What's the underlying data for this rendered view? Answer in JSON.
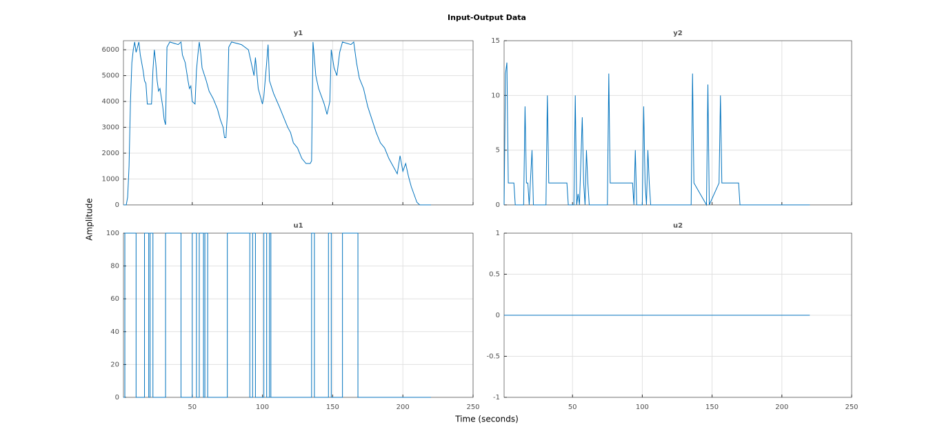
{
  "title": "Input-Output Data",
  "xlabel": "Time (seconds)",
  "ylabel": "Amplitude",
  "chart_data": [
    {
      "type": "line",
      "title": "y1",
      "color": "#0072bd",
      "grid": true,
      "xlim": [
        1,
        250
      ],
      "xticks": [
        50,
        100,
        150,
        200,
        250
      ],
      "ylim": [
        0,
        6350
      ],
      "yticks": [
        0,
        1000,
        2000,
        3000,
        4000,
        5000,
        6000
      ],
      "x": [
        1,
        3,
        4,
        5,
        6,
        7,
        8,
        9,
        10,
        12,
        13,
        15,
        16,
        17,
        18,
        21,
        22,
        23,
        24,
        25,
        26,
        27,
        29,
        30,
        31,
        32,
        34,
        40,
        42,
        43,
        45,
        47,
        48,
        49,
        50,
        52,
        53,
        54,
        55,
        56,
        57,
        60,
        62,
        65,
        68,
        70,
        72,
        73,
        74,
        75,
        76,
        78,
        85,
        90,
        92,
        94,
        95,
        97,
        99,
        100,
        101,
        103,
        104,
        105,
        108,
        112,
        115,
        118,
        120,
        122,
        125,
        128,
        131,
        134,
        135,
        136,
        138,
        140,
        142,
        144,
        146,
        148,
        149,
        151,
        153,
        155,
        157,
        163,
        165,
        167,
        169,
        172,
        175,
        178,
        181,
        184,
        187,
        190,
        193,
        196,
        198,
        200,
        202,
        204,
        206,
        208,
        210,
        212,
        220
      ],
      "values": [
        0,
        0,
        300,
        1500,
        4000,
        5500,
        6000,
        6300,
        5900,
        6300,
        5800,
        5200,
        4800,
        4700,
        3900,
        3900,
        5200,
        6000,
        5500,
        4800,
        4400,
        4500,
        3800,
        3300,
        3100,
        6100,
        6300,
        6200,
        6300,
        5800,
        5500,
        4800,
        4500,
        4600,
        4000,
        3900,
        5200,
        5800,
        6300,
        5900,
        5300,
        4800,
        4400,
        4100,
        3700,
        3300,
        3000,
        2600,
        2600,
        3500,
        6100,
        6300,
        6200,
        6000,
        5500,
        5000,
        5700,
        4500,
        4100,
        3900,
        4200,
        5500,
        6200,
        4800,
        4300,
        3800,
        3400,
        3000,
        2800,
        2400,
        2200,
        1800,
        1600,
        1600,
        1700,
        6300,
        5000,
        4500,
        4200,
        3900,
        3500,
        4000,
        6000,
        5300,
        5000,
        5900,
        6300,
        6200,
        6300,
        5500,
        4900,
        4500,
        3800,
        3300,
        2800,
        2400,
        2200,
        1800,
        1500,
        1200,
        1900,
        1300,
        1600,
        1100,
        700,
        400,
        100,
        0,
        0
      ]
    },
    {
      "type": "line",
      "title": "y2",
      "color": "#0072bd",
      "grid": true,
      "xlim": [
        1,
        250
      ],
      "xticks": [
        50,
        100,
        150,
        200,
        250
      ],
      "ylim": [
        0,
        15
      ],
      "yticks": [
        0,
        5,
        10,
        15
      ],
      "x": [
        1,
        2,
        3,
        4,
        8,
        9,
        15,
        16,
        17,
        18,
        19,
        21,
        22,
        31,
        32,
        33,
        46,
        47,
        51,
        52,
        53,
        54,
        55,
        57,
        58,
        59,
        60,
        61,
        62,
        75,
        76,
        77,
        93,
        94,
        95,
        96,
        100,
        101,
        102,
        103,
        104,
        105,
        106,
        135,
        136,
        137,
        146,
        147,
        148,
        155,
        156,
        157,
        169,
        170,
        220
      ],
      "values": [
        0,
        12,
        13,
        2,
        2,
        0,
        0,
        9,
        2,
        2,
        0,
        5,
        0,
        0,
        10,
        2,
        2,
        0,
        0,
        10,
        0,
        1,
        0,
        8,
        2,
        0,
        5,
        2,
        0,
        0,
        12,
        2,
        2,
        0,
        5,
        0,
        0,
        9,
        2,
        0,
        5,
        2,
        0,
        0,
        12,
        2,
        0,
        11,
        0,
        2,
        10,
        2,
        2,
        0,
        0
      ]
    },
    {
      "type": "line",
      "title": "u1",
      "color": "#0072bd",
      "grid": true,
      "xlim": [
        1,
        250
      ],
      "xticks": [
        50,
        100,
        150,
        200,
        250
      ],
      "ylim": [
        0,
        100
      ],
      "yticks": [
        0,
        20,
        40,
        60,
        80,
        100
      ],
      "x": [
        1,
        2,
        2,
        10,
        10,
        16,
        16,
        19,
        19,
        20,
        20,
        22,
        22,
        31,
        31,
        42,
        42,
        50,
        50,
        53,
        53,
        55,
        55,
        58,
        58,
        59,
        59,
        61,
        61,
        75,
        75,
        91,
        91,
        93,
        93,
        95,
        95,
        101,
        101,
        103,
        103,
        105,
        105,
        106,
        106,
        135,
        135,
        137,
        137,
        147,
        147,
        149,
        149,
        157,
        157,
        168,
        168,
        220
      ],
      "values": [
        0,
        0,
        100,
        100,
        0,
        0,
        100,
        100,
        0,
        0,
        100,
        100,
        0,
        0,
        100,
        100,
        0,
        0,
        100,
        100,
        0,
        0,
        100,
        100,
        0,
        0,
        100,
        100,
        0,
        0,
        100,
        100,
        0,
        0,
        100,
        100,
        0,
        0,
        100,
        100,
        0,
        0,
        100,
        100,
        0,
        0,
        100,
        100,
        0,
        0,
        100,
        100,
        0,
        0,
        100,
        100,
        0,
        0
      ]
    },
    {
      "type": "line",
      "title": "u2",
      "color": "#0072bd",
      "grid": true,
      "xlim": [
        1,
        250
      ],
      "xticks": [
        50,
        100,
        150,
        200,
        250
      ],
      "ylim": [
        -1,
        1
      ],
      "yticks": [
        -1,
        -0.5,
        0,
        0.5,
        1
      ],
      "x": [
        1,
        220
      ],
      "values": [
        0,
        0
      ]
    }
  ]
}
